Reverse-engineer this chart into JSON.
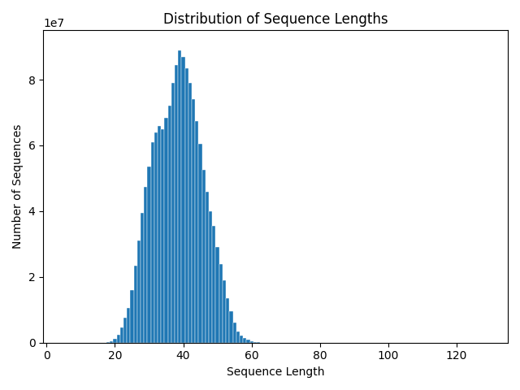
{
  "title": "Distribution of Sequence Lengths",
  "xlabel": "Sequence Length",
  "ylabel": "Number of Sequences",
  "bar_color": "#1f77b4",
  "xlim": [
    -1,
    135
  ],
  "ylim": [
    0,
    95000000.0
  ],
  "x_start": 18,
  "bar_heights": [
    100000,
    500000,
    1100000,
    2400000,
    4700000,
    7500000,
    10500000,
    15900000,
    23500000,
    31000000,
    39500000,
    47500000,
    53500000,
    61000000,
    64000000,
    66000000,
    65000000,
    68500000,
    72000000,
    79000000,
    84500000,
    89000000,
    87000000,
    83500000,
    79000000,
    74000000,
    67500000,
    60500000,
    52500000,
    46000000,
    40000000,
    35500000,
    29000000,
    24000000,
    19000000,
    13500000,
    9500000,
    6000000,
    3500000,
    2200000,
    1500000,
    800000,
    500000,
    200000,
    100000,
    50000,
    10000,
    5000
  ],
  "xticks": [
    0,
    20,
    40,
    60,
    80,
    100,
    120
  ],
  "yticks": [
    0,
    20000000.0,
    40000000.0,
    60000000.0,
    80000000.0
  ],
  "title_fontsize": 12,
  "label_fontsize": 10,
  "figsize": [
    6.4,
    4.8
  ],
  "dpi": 100
}
